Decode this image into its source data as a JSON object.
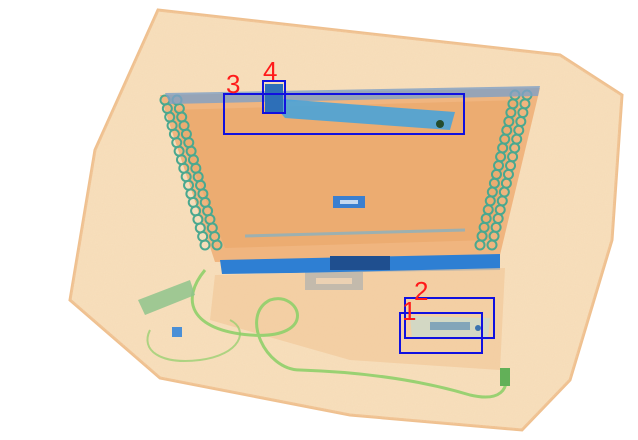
{
  "image": {
    "kind": "x-ray baggage scan",
    "colors": {
      "background": "#ffffff",
      "organic": "#e8a063",
      "organic_light": "#f3cfa2",
      "metal_blue": "#2e7fd3",
      "metal_dark": "#1b4f9a",
      "wire_green": "#7dc45a",
      "coil_teal": "#4aa88f",
      "box_color": "#1010e0",
      "label_color": "#ff1a1a"
    }
  },
  "detections": [
    {
      "label": "1"
    },
    {
      "label": "2"
    },
    {
      "label": "3"
    },
    {
      "label": "4"
    }
  ]
}
